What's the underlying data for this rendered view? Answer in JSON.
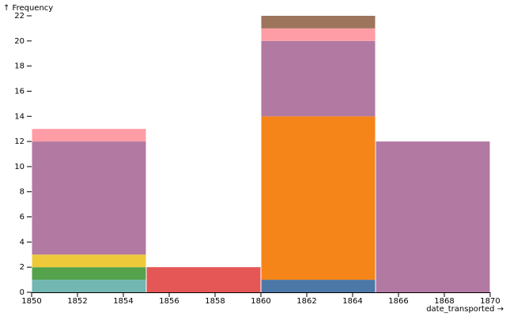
{
  "chart_data": {
    "type": "bar",
    "subtype": "stacked-histogram",
    "title": "",
    "xlabel": "date_transported →",
    "ylabel": "↑ Frequency",
    "xlim": [
      1850,
      1870
    ],
    "ylim": [
      0,
      22
    ],
    "x_ticks": [
      1850,
      1852,
      1854,
      1856,
      1858,
      1860,
      1862,
      1864,
      1866,
      1868,
      1870
    ],
    "y_ticks": [
      0,
      2,
      4,
      6,
      8,
      10,
      12,
      14,
      16,
      18,
      20,
      22
    ],
    "grid": false,
    "legend": "none",
    "bins": [
      {
        "x0": 1850,
        "x1": 1855,
        "segments": [
          {
            "value": 1,
            "color": "#72b7b2"
          },
          {
            "value": 1,
            "color": "#54a24b"
          },
          {
            "value": 1,
            "color": "#eeca3b"
          },
          {
            "value": 9,
            "color": "#b279a2"
          },
          {
            "value": 1,
            "color": "#ff9da6"
          }
        ]
      },
      {
        "x0": 1855,
        "x1": 1860,
        "segments": [
          {
            "value": 2,
            "color": "#e45756"
          }
        ]
      },
      {
        "x0": 1860,
        "x1": 1865,
        "segments": [
          {
            "value": 1,
            "color": "#4c78a8"
          },
          {
            "value": 13,
            "color": "#f58518"
          },
          {
            "value": 6,
            "color": "#b279a2"
          },
          {
            "value": 1,
            "color": "#ff9da6"
          },
          {
            "value": 1,
            "color": "#9d755d"
          }
        ]
      },
      {
        "x0": 1865,
        "x1": 1870,
        "segments": [
          {
            "value": 12,
            "color": "#b279a2"
          }
        ]
      }
    ]
  }
}
